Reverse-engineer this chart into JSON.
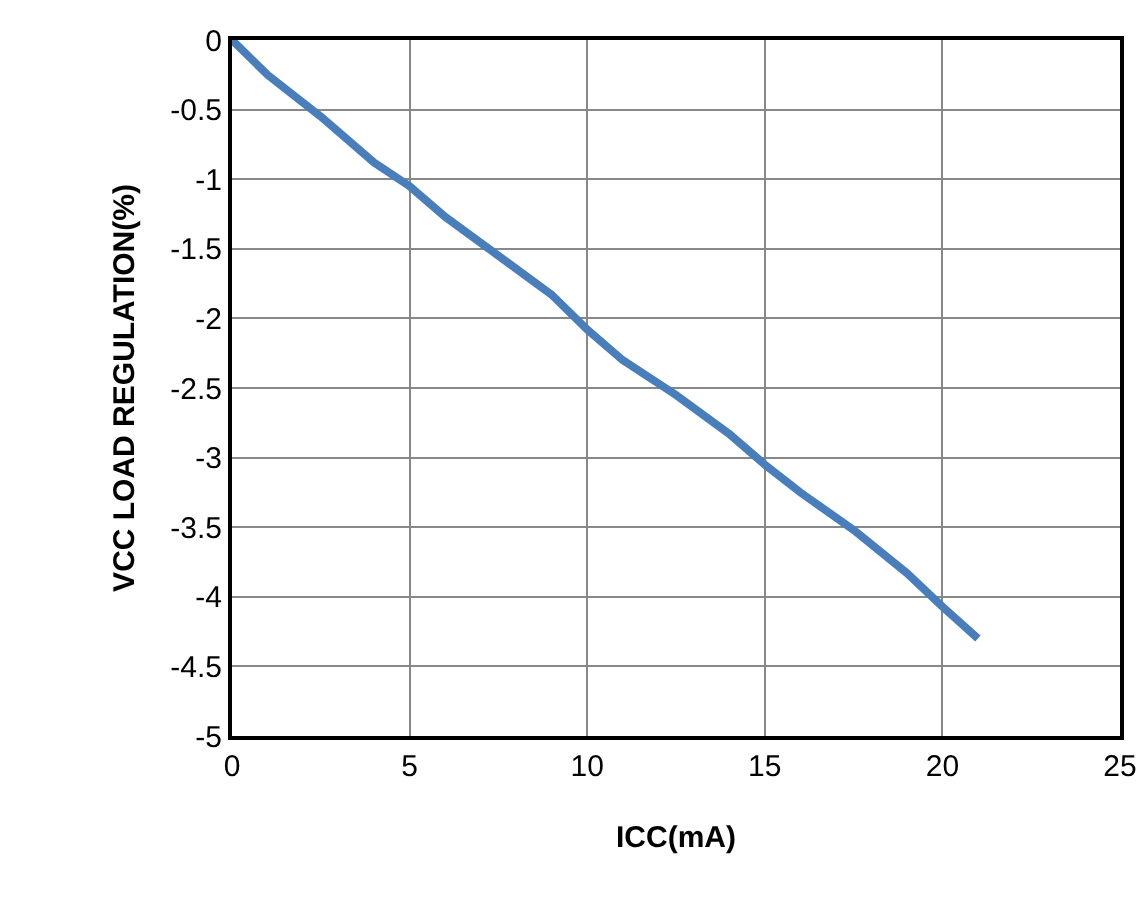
{
  "chart_data": {
    "type": "line",
    "xlabel": "ICC(mA)",
    "ylabel": "VCC LOAD REGULATION(%)",
    "x": [
      0,
      1,
      2.5,
      4,
      5,
      6,
      7.5,
      9,
      10,
      11,
      12.5,
      14,
      15,
      16,
      17.5,
      19,
      20,
      21
    ],
    "series": [
      {
        "color": "#4a7ebb",
        "values": [
          0,
          -0.25,
          -0.55,
          -0.88,
          -1.05,
          -1.27,
          -1.55,
          -1.83,
          -2.08,
          -2.3,
          -2.55,
          -2.83,
          -3.05,
          -3.25,
          -3.52,
          -3.83,
          -4.07,
          -4.3
        ]
      }
    ],
    "xlim": [
      0,
      25
    ],
    "xticks": [
      0,
      5,
      10,
      15,
      20,
      25
    ],
    "ylim": [
      -5,
      0
    ],
    "yticks": [
      -5,
      -4.5,
      -4,
      -3.5,
      -3,
      -2.5,
      -2,
      -1.5,
      -1,
      -0.5,
      0
    ],
    "grid": true,
    "marker": "none",
    "line_style": "solid"
  }
}
